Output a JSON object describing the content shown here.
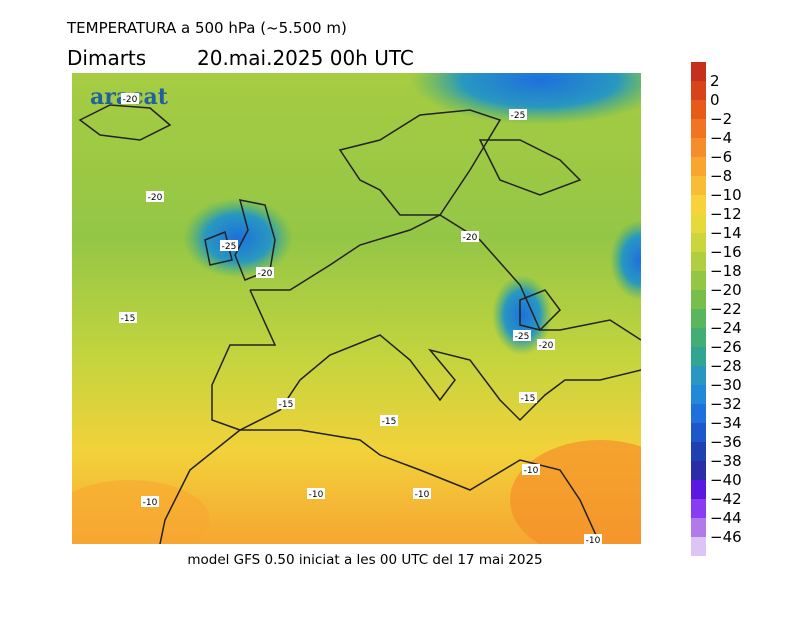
{
  "header": {
    "title": "TEMPERATURA a 500 hPa (~5.500 m)",
    "day": "Dimarts",
    "date": "20.mai.2025 00h UTC"
  },
  "logo": "aracat",
  "footer": "model GFS 0.50 iniciat a les 00 UTC del 17 mai 2025",
  "contour_labels": [
    "-20",
    "-25",
    "-20",
    "-25",
    "-20",
    "-20",
    "-15",
    "-25",
    "-20",
    "-15",
    "-15",
    "-15",
    "-10",
    "-10",
    "-10",
    "-10",
    "-10"
  ],
  "colorbar": {
    "labels": [
      "2",
      "0",
      "−2",
      "−4",
      "−6",
      "−8",
      "−10",
      "−12",
      "−14",
      "−16",
      "−18",
      "−20",
      "−22",
      "−24",
      "−26",
      "−28",
      "−30",
      "−32",
      "−34",
      "−36",
      "−38",
      "−40",
      "−42",
      "−44",
      "−46"
    ],
    "colors": [
      "#c4301c",
      "#d8441a",
      "#e85a18",
      "#f07422",
      "#f58e2a",
      "#f8a630",
      "#f9bd35",
      "#f8d23a",
      "#e6da3a",
      "#cbd63c",
      "#b0ce40",
      "#94c646",
      "#78be4c",
      "#58b65c",
      "#42ae74",
      "#30a690",
      "#2898c0",
      "#208ad8",
      "#1e70dc",
      "#1e56cc",
      "#1e40b0",
      "#2a2ca8",
      "#5a18e0",
      "#8a3cf0",
      "#b07ae8",
      "#dcc4f4"
    ]
  }
}
